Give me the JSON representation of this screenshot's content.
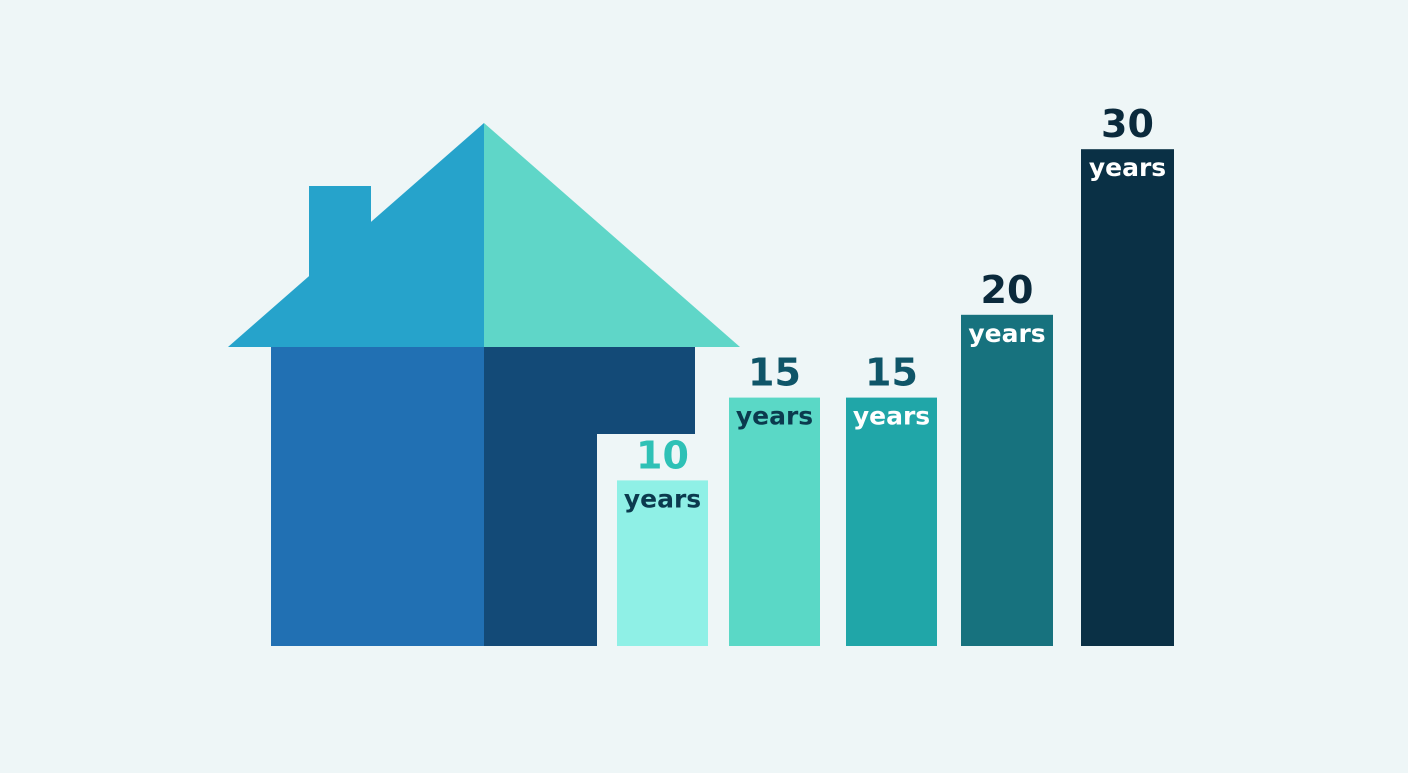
{
  "chart_data": {
    "type": "bar",
    "title": "",
    "xlabel": "",
    "ylabel": "",
    "grid": false,
    "legend": "none",
    "unit": "years",
    "values": [
      10,
      15,
      15,
      20,
      30
    ],
    "number_labels": [
      "10",
      "15",
      "15",
      "20",
      "30"
    ],
    "unit_labels": [
      "years",
      "years",
      "years",
      "years",
      "years"
    ],
    "ylim": [
      0,
      32
    ],
    "bar_colors": [
      "#8ff0e6",
      "#5ad8c6",
      "#20a6a8",
      "#17727e",
      "#0a3045"
    ],
    "number_label_colors": [
      "#2ec1b6",
      "#0f5568",
      "#0f5568",
      "#0b2a3c",
      "#0b2a3c"
    ],
    "unit_label_colors": [
      "#0b3a4e",
      "#0b3a4e",
      "#ffffff",
      "#ffffff",
      "#ffffff"
    ]
  },
  "illustration": {
    "name": "house",
    "colors": {
      "roof_left": "#26a3cb",
      "roof_right": "#5fd6c8",
      "chimney": "#26a3cb",
      "wall_left": "#2170b3",
      "wall_right": "#134a77",
      "background": "#eef6f7"
    }
  }
}
